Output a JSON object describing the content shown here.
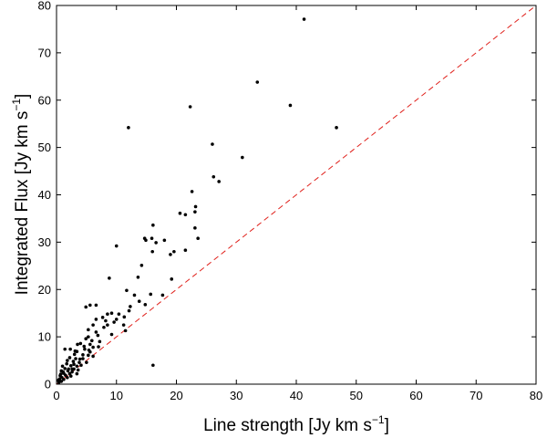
{
  "chart_data": {
    "type": "scatter",
    "xlabel": "Line strength [Jy km s",
    "ylabel": "Integrated Flux [Jy km s",
    "unit_exponent": "−1",
    "axis_label_close": "]",
    "xlim": [
      0,
      80
    ],
    "ylim": [
      0,
      80
    ],
    "xticks": [
      0,
      10,
      20,
      30,
      40,
      50,
      60,
      70,
      80
    ],
    "yticks": [
      0,
      10,
      20,
      30,
      40,
      50,
      60,
      70,
      80
    ],
    "grid": false,
    "reference_line": {
      "x": [
        0,
        80
      ],
      "y": [
        0,
        80
      ],
      "style": "dashed",
      "color": "#e0201b"
    },
    "marker_color": "#000000",
    "points": [
      [
        41.3,
        77.1
      ],
      [
        33.5,
        63.8
      ],
      [
        22.3,
        58.6
      ],
      [
        39.0,
        58.9
      ],
      [
        12.0,
        54.2
      ],
      [
        46.7,
        54.2
      ],
      [
        26.0,
        50.7
      ],
      [
        31.0,
        47.9
      ],
      [
        26.2,
        43.8
      ],
      [
        27.1,
        42.8
      ],
      [
        22.6,
        40.7
      ],
      [
        23.2,
        37.5
      ],
      [
        23.1,
        36.4
      ],
      [
        20.6,
        36.1
      ],
      [
        21.5,
        35.8
      ],
      [
        16.1,
        33.6
      ],
      [
        23.1,
        33.0
      ],
      [
        23.6,
        30.8
      ],
      [
        14.7,
        30.8
      ],
      [
        15.9,
        30.8
      ],
      [
        14.9,
        30.4
      ],
      [
        18.0,
        30.4
      ],
      [
        10.0,
        29.2
      ],
      [
        16.0,
        28.0
      ],
      [
        19.6,
        28.0
      ],
      [
        21.5,
        28.3
      ],
      [
        19.0,
        27.4
      ],
      [
        14.2,
        25.1
      ],
      [
        13.6,
        22.6
      ],
      [
        8.8,
        22.4
      ],
      [
        19.2,
        22.2
      ],
      [
        11.7,
        19.8
      ],
      [
        15.7,
        19.0
      ],
      [
        17.7,
        18.8
      ],
      [
        13.8,
        17.5
      ],
      [
        14.8,
        16.8
      ],
      [
        5.6,
        16.7
      ],
      [
        6.6,
        16.7
      ],
      [
        12.3,
        16.4
      ],
      [
        4.9,
        16.3
      ],
      [
        12.1,
        15.5
      ],
      [
        10.4,
        14.8
      ],
      [
        8.5,
        14.8
      ],
      [
        9.2,
        15.0
      ],
      [
        11.3,
        14.2
      ],
      [
        7.7,
        14.1
      ],
      [
        10.0,
        13.7
      ],
      [
        6.6,
        13.7
      ],
      [
        8.2,
        13.4
      ],
      [
        11.2,
        12.5
      ],
      [
        6.1,
        12.5
      ],
      [
        8.5,
        12.5
      ],
      [
        5.3,
        11.5
      ],
      [
        11.5,
        11.3
      ],
      [
        6.6,
        11.0
      ],
      [
        9.2,
        10.5
      ],
      [
        5.3,
        10.0
      ],
      [
        4.9,
        9.6
      ],
      [
        7.2,
        9.0
      ],
      [
        4.0,
        8.6
      ],
      [
        3.5,
        8.4
      ],
      [
        5.6,
        8.4
      ],
      [
        7.0,
        7.9
      ],
      [
        1.4,
        7.4
      ],
      [
        2.3,
        7.4
      ],
      [
        4.7,
        7.4
      ],
      [
        5.4,
        7.2
      ],
      [
        3.4,
        6.9
      ],
      [
        3.0,
        6.3
      ],
      [
        4.4,
        6.2
      ],
      [
        5.3,
        6.1
      ],
      [
        6.1,
        5.9
      ],
      [
        2.2,
        5.6
      ],
      [
        3.2,
        5.4
      ],
      [
        4.4,
        5.4
      ],
      [
        1.8,
        5.0
      ],
      [
        2.8,
        4.8
      ],
      [
        3.8,
        4.6
      ],
      [
        5.0,
        4.6
      ],
      [
        1.7,
        4.3
      ],
      [
        2.9,
        4.2
      ],
      [
        4.1,
        4.0
      ],
      [
        1.0,
        3.8
      ],
      [
        2.4,
        3.9
      ],
      [
        3.4,
        3.8
      ],
      [
        16.1,
        4.0
      ],
      [
        1.4,
        3.3
      ],
      [
        2.6,
        3.2
      ],
      [
        3.6,
        3.0
      ],
      [
        0.8,
        2.8
      ],
      [
        1.9,
        2.8
      ],
      [
        2.6,
        2.6
      ],
      [
        1.2,
        2.3
      ],
      [
        2.2,
        2.2
      ],
      [
        3.4,
        2.2
      ],
      [
        0.6,
        1.8
      ],
      [
        1.5,
        1.9
      ],
      [
        2.4,
        1.7
      ],
      [
        0.9,
        1.4
      ],
      [
        1.8,
        1.4
      ],
      [
        0.5,
        1.1
      ],
      [
        1.2,
        1.0
      ],
      [
        0.3,
        0.8
      ],
      [
        0.8,
        0.6
      ],
      [
        0.4,
        0.4
      ],
      [
        2.9,
        3.2
      ],
      [
        3.9,
        5.3
      ],
      [
        4.6,
        8.0
      ],
      [
        3.1,
        7.0
      ],
      [
        5.9,
        9.2
      ],
      [
        6.9,
        10.3
      ],
      [
        7.9,
        12.0
      ],
      [
        9.6,
        13.1
      ],
      [
        13.0,
        18.8
      ],
      [
        16.6,
        29.9
      ],
      [
        6.1,
        7.8
      ],
      [
        5.6,
        6.8
      ],
      [
        2.0,
        3.2
      ],
      [
        1.1,
        2.6
      ],
      [
        0.7,
        2.1
      ]
    ]
  }
}
